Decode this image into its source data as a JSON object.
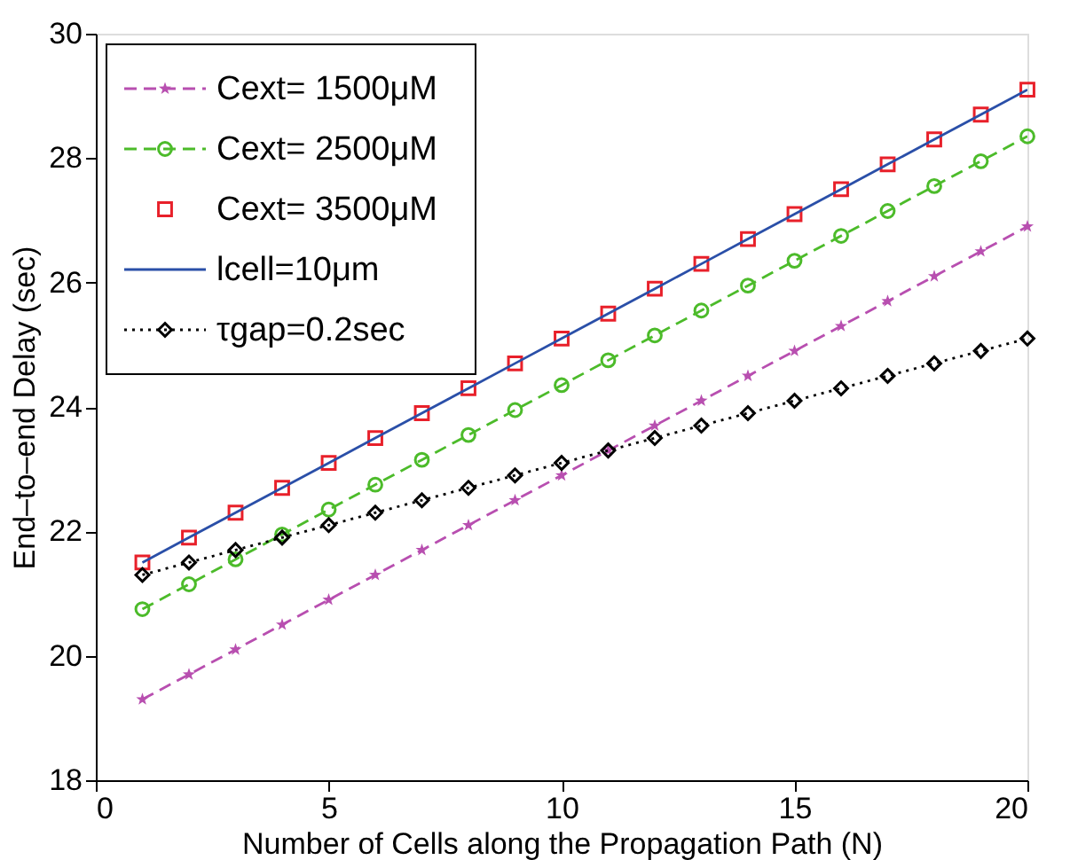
{
  "chart_data": {
    "type": "line",
    "xlabel": "Number of Cells along the Propagation Path (N)",
    "ylabel": "End–to–end Delay (sec)",
    "x": [
      1,
      2,
      3,
      4,
      5,
      6,
      7,
      8,
      9,
      10,
      11,
      12,
      13,
      14,
      15,
      16,
      17,
      18,
      19,
      20
    ],
    "xlim": [
      0,
      20
    ],
    "xticks": [
      0,
      5,
      10,
      15,
      20
    ],
    "ylim": [
      18,
      30
    ],
    "yticks": [
      18,
      20,
      22,
      24,
      26,
      28,
      30
    ],
    "grid": false,
    "legend": "top left",
    "series": [
      {
        "name": "Cext= 1500μM",
        "color": "#b84fb0",
        "marker": "star",
        "line_style": "dashed",
        "values": [
          19.3,
          19.7,
          20.1,
          20.5,
          20.9,
          21.3,
          21.7,
          22.1,
          22.5,
          22.9,
          23.3,
          23.7,
          24.1,
          24.5,
          24.9,
          25.3,
          25.7,
          26.1,
          26.5,
          26.9
        ]
      },
      {
        "name": "Cext= 2500μM",
        "color": "#4cbb2a",
        "marker": "circle",
        "line_style": "dashed",
        "values": [
          20.75,
          21.15,
          21.55,
          21.95,
          22.35,
          22.75,
          23.15,
          23.55,
          23.95,
          24.35,
          24.75,
          25.15,
          25.55,
          25.95,
          26.35,
          26.75,
          27.15,
          27.55,
          27.95,
          28.35
        ]
      },
      {
        "name": "Cext= 3500μM",
        "type": "scatter",
        "color": "#e8202a",
        "marker": "square",
        "values": [
          21.5,
          21.9,
          22.3,
          22.7,
          23.1,
          23.5,
          23.9,
          24.3,
          24.7,
          25.1,
          25.5,
          25.9,
          26.3,
          26.7,
          27.1,
          27.5,
          27.9,
          28.3,
          28.7,
          29.1
        ]
      },
      {
        "name": "lcell=10μm",
        "color": "#2a4fa8",
        "marker": "none",
        "line_style": "solid",
        "values": [
          21.5,
          21.9,
          22.3,
          22.7,
          23.1,
          23.5,
          23.9,
          24.3,
          24.7,
          25.1,
          25.5,
          25.9,
          26.3,
          26.7,
          27.1,
          27.5,
          27.9,
          28.3,
          28.7,
          29.1
        ]
      },
      {
        "name": "τgap=0.2sec",
        "color": "#000000",
        "marker": "diamond",
        "line_style": "dotted",
        "values": [
          21.3,
          21.5,
          21.7,
          21.9,
          22.1,
          22.3,
          22.5,
          22.7,
          22.9,
          23.1,
          23.3,
          23.5,
          23.7,
          23.9,
          24.1,
          24.3,
          24.5,
          24.7,
          24.9,
          25.1
        ]
      }
    ]
  }
}
